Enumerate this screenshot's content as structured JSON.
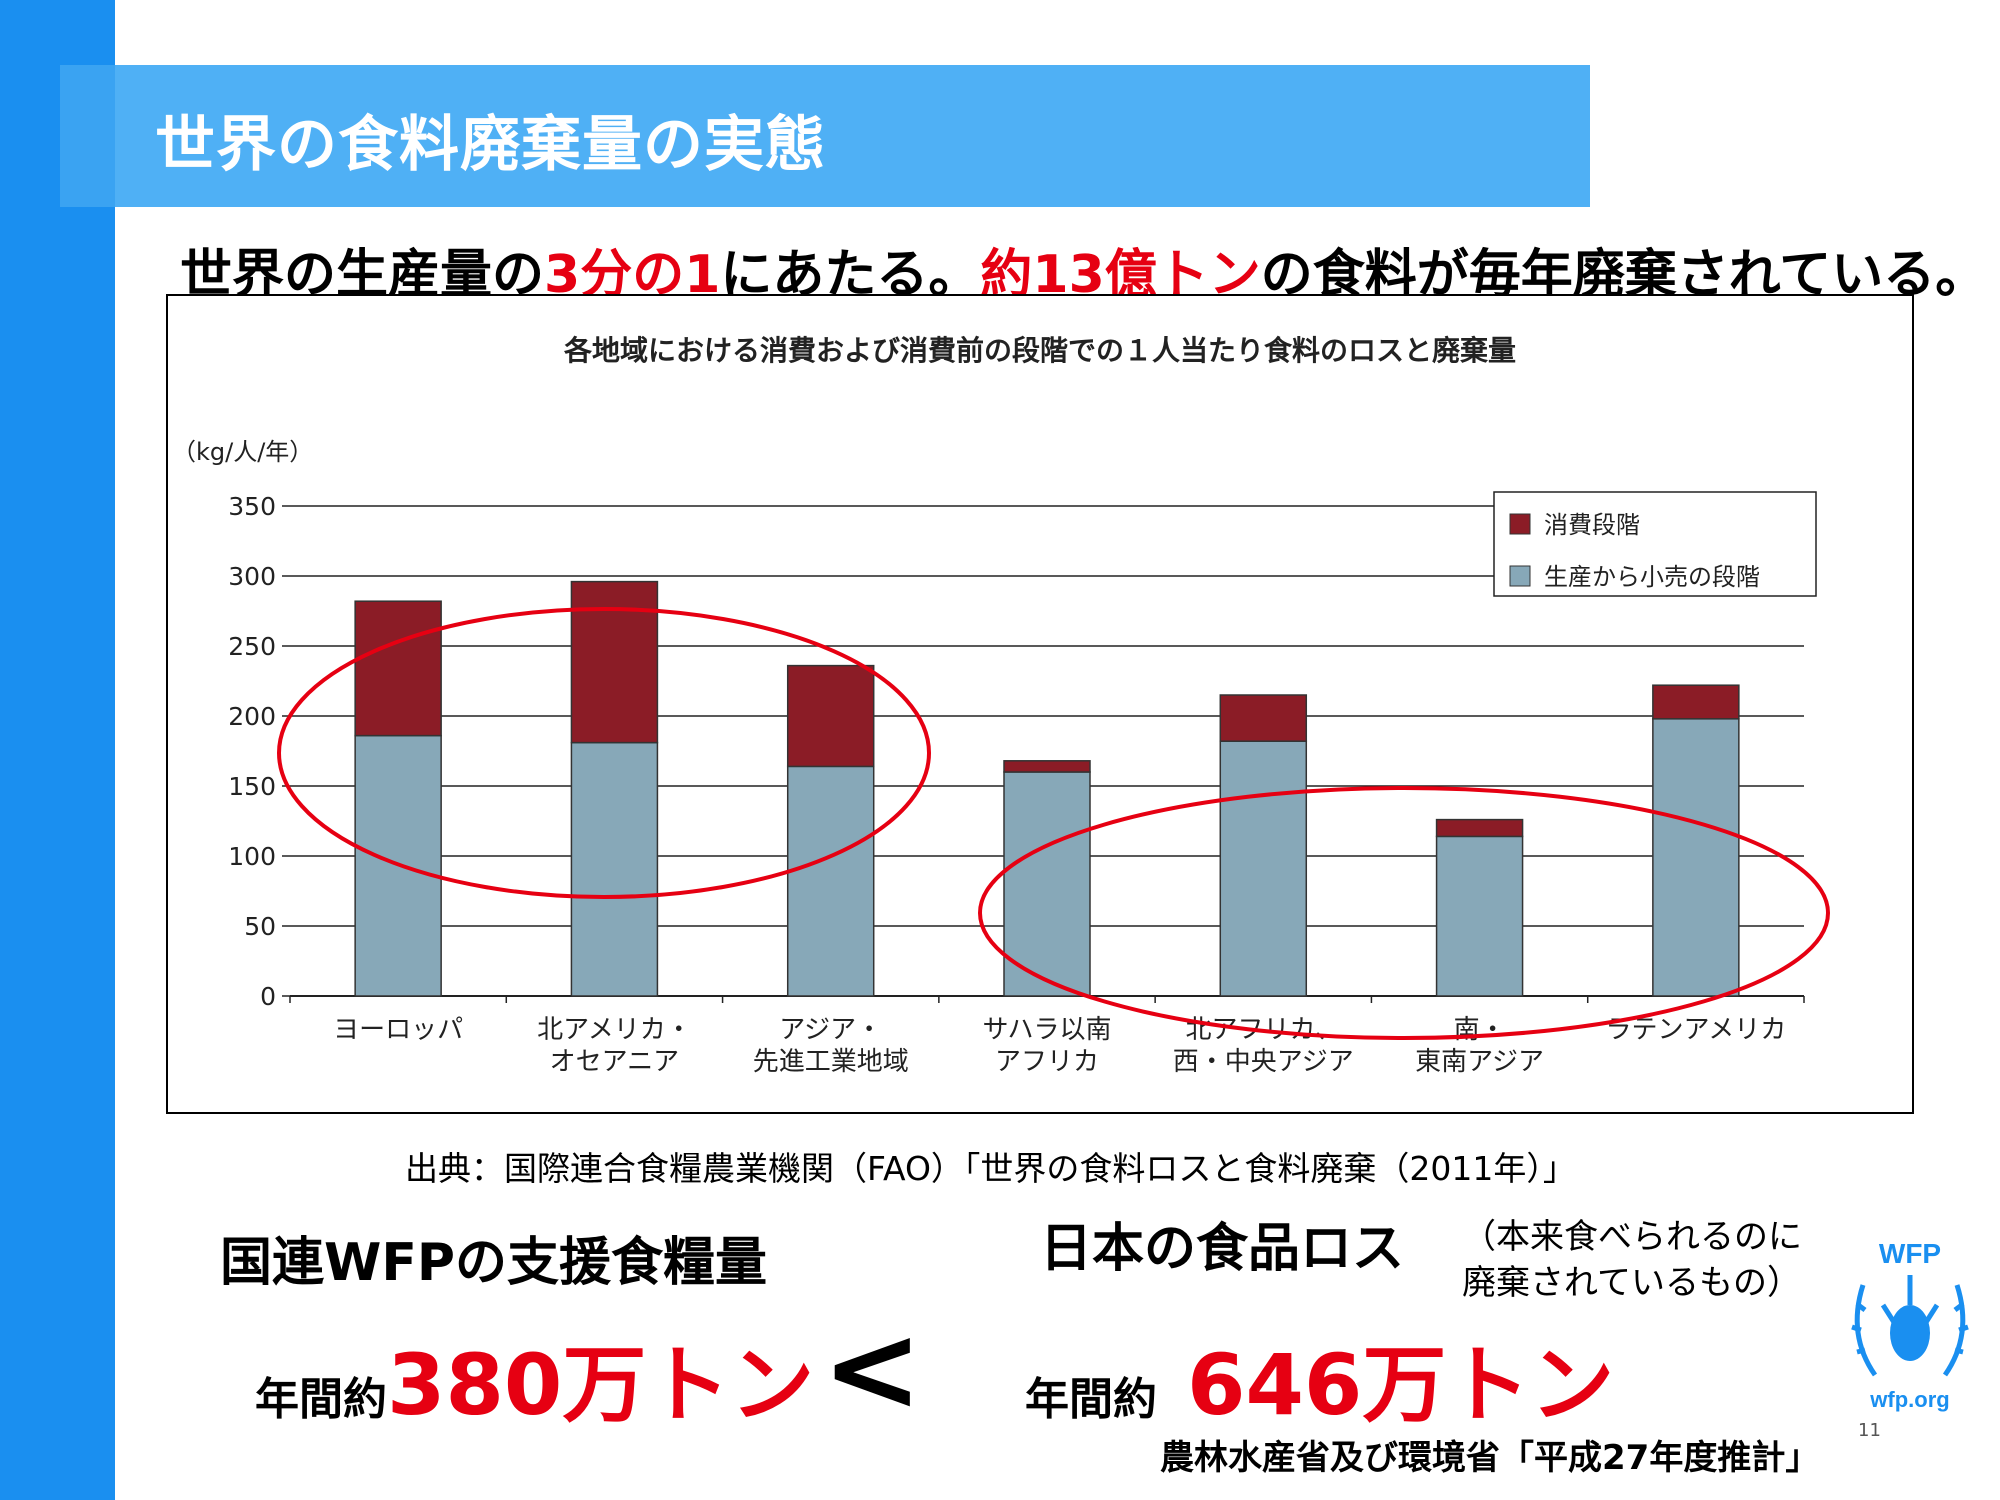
{
  "slide": {
    "title": "世界の食料廃棄量の実態",
    "headline_part1": "世界の生産量の",
    "headline_red1": "3分の1",
    "headline_part2": "にあたる。",
    "headline_red2": "約13億トン",
    "headline_part3": "の食料が毎年廃棄されている。",
    "source": "出典：国際連合食糧農業機関（FAO）「世界の食料ロスと食料廃棄（2011年）」",
    "wfp_label": "国連WFPの支援食糧量",
    "wfp_amount_prefix": "年間約",
    "wfp_amount_value": "380万トン",
    "comparison_symbol": "<",
    "japan_label": "日本の食品ロス",
    "japan_note_line1": "（本来食べられるのに",
    "japan_note_line2": "廃棄されているもの）",
    "japan_amount_prefix": "年間約",
    "japan_amount_value": "646万トン",
    "japan_source": "農林水産省及び環境省「平成27年度推計」",
    "page_number": "11",
    "logo_top_text": "WFP",
    "logo_bottom_text": "wfp.org"
  },
  "colors": {
    "accent_red": "#e60012",
    "title_band": "#4fb0f5",
    "left_bar": "#1a8ff0",
    "consumption": "#8b1c26",
    "production": "#87a8b8",
    "highlight_ellipse": "#e60012",
    "logo": "#1a8ff0"
  },
  "chart_data": {
    "type": "bar",
    "stacked": true,
    "title": "各地域における消費および消費前の段階での１人当たり食料のロスと廃棄量",
    "ylabel": "（kg/人/年）",
    "xlabel": "",
    "ylim": [
      0,
      350
    ],
    "yticks": [
      0,
      50,
      100,
      150,
      200,
      250,
      300,
      350
    ],
    "grid": true,
    "legend_position": "top-right",
    "categories": [
      [
        "ヨーロッパ"
      ],
      [
        "北アメリカ・",
        "オセアニア"
      ],
      [
        "アジア・",
        "先進工業地域"
      ],
      [
        "サハラ以南",
        "アフリカ"
      ],
      [
        "北アフリカ、",
        "西・中央アジア"
      ],
      [
        "南・",
        "東南アジア"
      ],
      [
        "ラテンアメリカ"
      ]
    ],
    "series": [
      {
        "name": "生産から小売の段階",
        "color": "#87a8b8",
        "values": [
          186,
          181,
          164,
          160,
          182,
          114,
          198
        ]
      },
      {
        "name": "消費段階",
        "color": "#8b1c26",
        "values": [
          96,
          115,
          72,
          8,
          33,
          12,
          24
        ]
      }
    ],
    "legend_order": [
      "消費段階",
      "生産から小売の段階"
    ]
  }
}
